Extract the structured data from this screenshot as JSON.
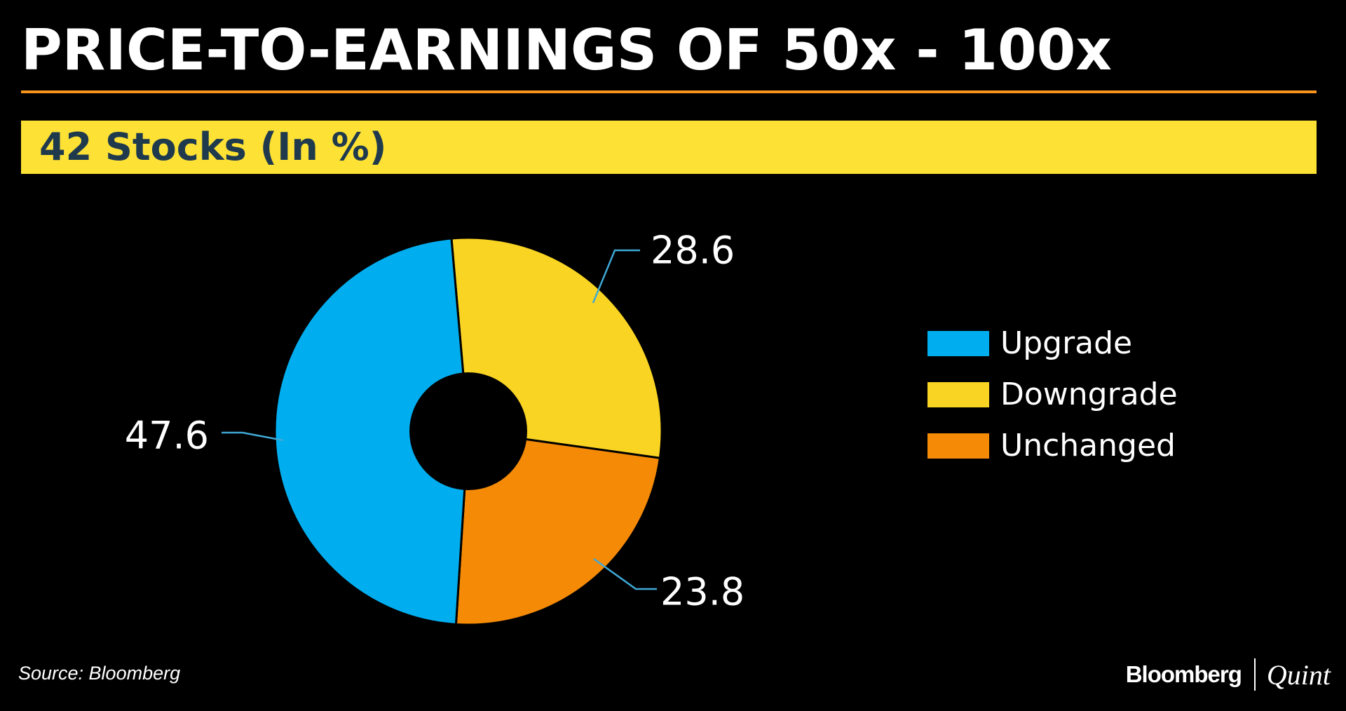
{
  "header": {
    "title": "PRICE-TO-EARNINGS OF 50x - 100x",
    "subtitle": "42 Stocks (In %)"
  },
  "colors": {
    "background": "#000000",
    "title_rule": "#f7941d",
    "subtitle_bar": "#fde135",
    "subtitle_text": "#1f3a4d",
    "leader_line": "#3fa9d6"
  },
  "chart_data": {
    "type": "pie",
    "variant": "donut",
    "title": "42 Stocks (In %)",
    "unit": "%",
    "slices": [
      {
        "name": "Downgrade",
        "value": 28.6,
        "label": "28.6",
        "color": "#f9d423"
      },
      {
        "name": "Unchanged",
        "value": 23.8,
        "label": "23.8",
        "color": "#f58a07"
      },
      {
        "name": "Upgrade",
        "value": 47.6,
        "label": "47.6",
        "color": "#00aeef"
      }
    ],
    "legend": [
      {
        "name": "Upgrade",
        "color": "#00aeef"
      },
      {
        "name": "Downgrade",
        "color": "#f9d423"
      },
      {
        "name": "Unchanged",
        "color": "#f58a07"
      }
    ],
    "legend_position": "right"
  },
  "footer": {
    "source": "Source: Bloomberg",
    "brand_main": "Bloomberg",
    "brand_sub": "Quint"
  }
}
